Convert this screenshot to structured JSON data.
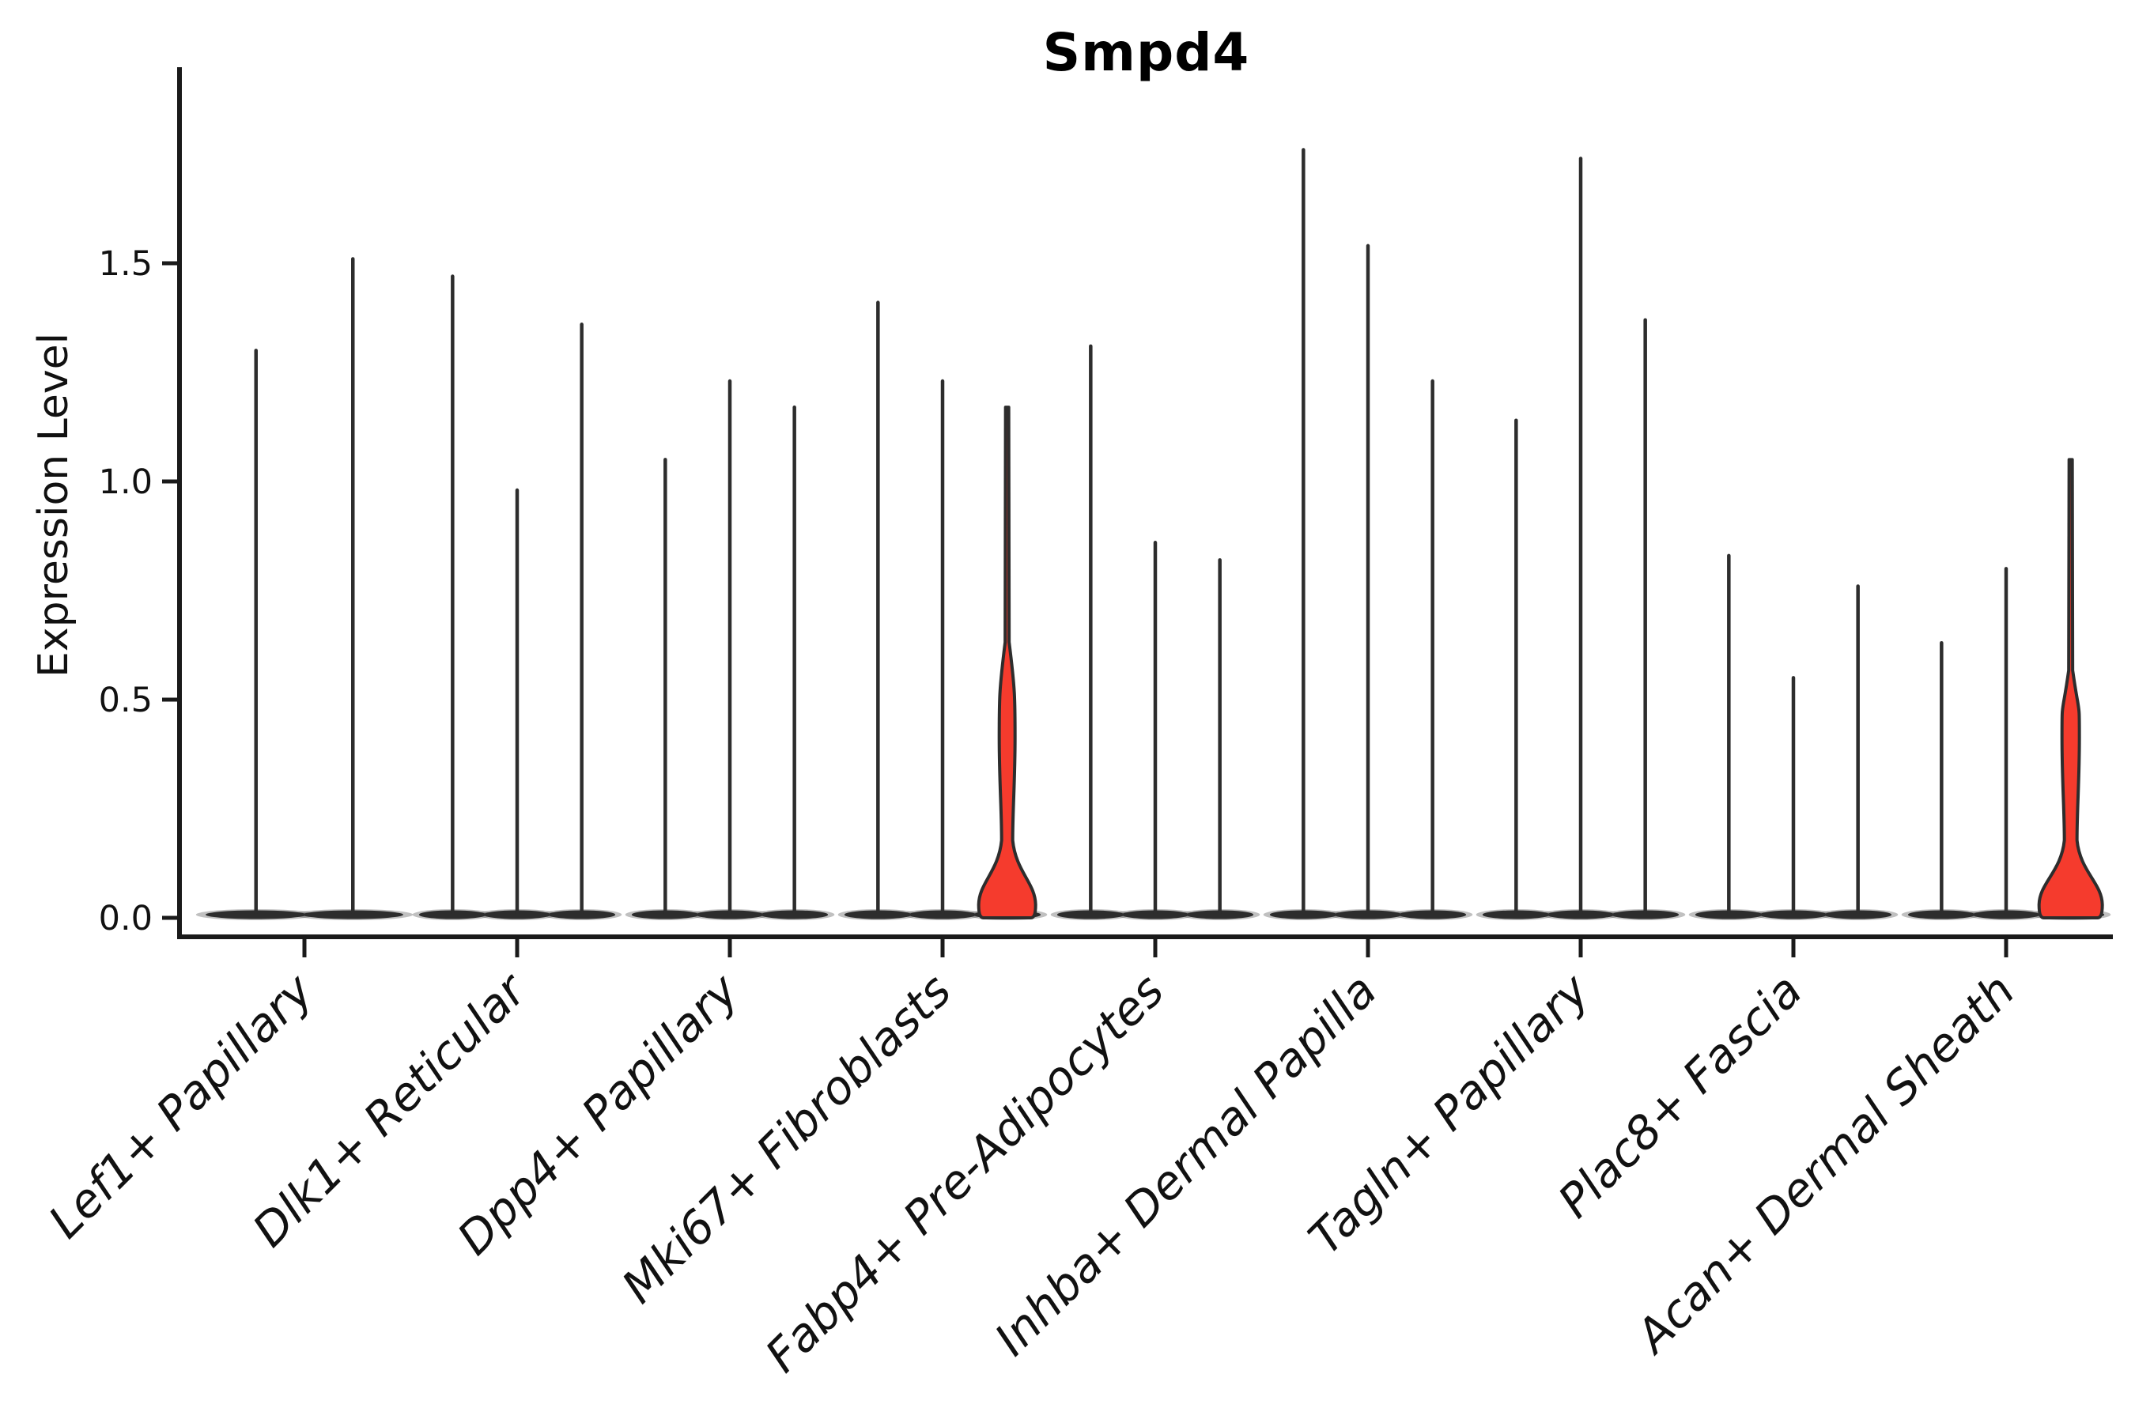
{
  "title": "Smpd4",
  "ylabel": "Expression Level",
  "chart_data": {
    "type": "violin",
    "title": "Smpd4",
    "xlabel": "",
    "ylabel": "Expression Level",
    "ylim": [
      0,
      1.95
    ],
    "yticks": [
      0.0,
      0.5,
      1.0,
      1.5
    ],
    "ytick_labels": [
      "0.0",
      "0.5",
      "1.0",
      "1.5"
    ],
    "grid": false,
    "legend": null,
    "violin_color": "#2d2d2d",
    "highlight_fill": "#f53b2d",
    "axis_color": "#1a1a1a",
    "categories": [
      "Lef1+ Papillary",
      "Dlk1+ Reticular",
      "Dpp4+ Papillary",
      "Mki67+ Fibroblasts",
      "Fabp4+ Pre-Adipocytes",
      "Inhba+ Dermal Papilla",
      "Tagln+ Papillary",
      "Plac8+ Fascia",
      "Acan+ Dermal Sheath"
    ],
    "groups": [
      {
        "category": "Lef1+ Papillary",
        "violins": [
          {
            "max": 1.3,
            "highlighted": false
          },
          {
            "max": 1.51,
            "highlighted": false
          }
        ]
      },
      {
        "category": "Dlk1+ Reticular",
        "violins": [
          {
            "max": 1.47,
            "highlighted": false
          },
          {
            "max": 0.98,
            "highlighted": false
          },
          {
            "max": 1.36,
            "highlighted": false
          }
        ]
      },
      {
        "category": "Dpp4+ Papillary",
        "violins": [
          {
            "max": 1.05,
            "highlighted": false
          },
          {
            "max": 1.23,
            "highlighted": false
          },
          {
            "max": 1.17,
            "highlighted": false
          }
        ]
      },
      {
        "category": "Mki67+ Fibroblasts",
        "violins": [
          {
            "max": 1.41,
            "highlighted": false
          },
          {
            "max": 1.23,
            "highlighted": false
          },
          {
            "max": 1.17,
            "highlighted": true
          }
        ]
      },
      {
        "category": "Fabp4+ Pre-Adipocytes",
        "violins": [
          {
            "max": 1.31,
            "highlighted": false
          },
          {
            "max": 0.86,
            "highlighted": false
          },
          {
            "max": 0.82,
            "highlighted": false
          }
        ]
      },
      {
        "category": "Inhba+ Dermal Papilla",
        "violins": [
          {
            "max": 1.76,
            "highlighted": false
          },
          {
            "max": 1.54,
            "highlighted": false
          },
          {
            "max": 1.23,
            "highlighted": false
          }
        ]
      },
      {
        "category": "Tagln+ Papillary",
        "violins": [
          {
            "max": 1.14,
            "highlighted": false
          },
          {
            "max": 1.74,
            "highlighted": false
          },
          {
            "max": 1.37,
            "highlighted": false
          }
        ]
      },
      {
        "category": "Plac8+ Fascia",
        "violins": [
          {
            "max": 0.83,
            "highlighted": false
          },
          {
            "max": 0.55,
            "highlighted": false
          },
          {
            "max": 0.76,
            "highlighted": false
          }
        ]
      },
      {
        "category": "Acan+ Dermal Sheath",
        "violins": [
          {
            "max": 0.63,
            "highlighted": false
          },
          {
            "max": 0.8,
            "highlighted": false
          },
          {
            "max": 1.05,
            "highlighted": true
          }
        ]
      }
    ]
  }
}
